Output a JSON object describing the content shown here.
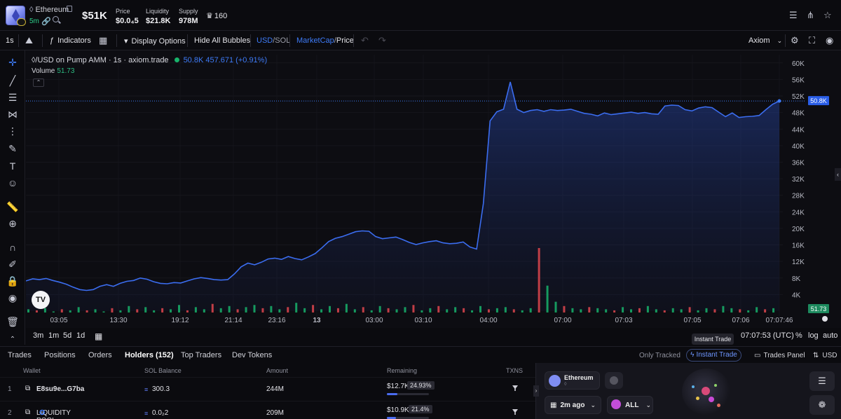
{
  "header": {
    "token_name": "Ethereum",
    "token_symbol_glyph": "◊",
    "age": "5m",
    "market_cap": "$51K",
    "stats": [
      {
        "label": "Price",
        "value": "$0.0₄5"
      },
      {
        "label": "Liquidity",
        "value": "$21.8K"
      },
      {
        "label": "Supply",
        "value": "978M"
      }
    ],
    "crown_count": "160",
    "right_icons": [
      "list-icon",
      "share-icon",
      "star-icon"
    ]
  },
  "toolbar": {
    "interval": "1s",
    "indicators": "Indicators",
    "display_options": "Display Options",
    "hide_bubbles": "Hide All Bubbles",
    "usd": "USD",
    "sol": "SOL",
    "marketcap": "MarketCap",
    "price": "Price",
    "platform": "Axiom",
    "slash": "/"
  },
  "chart": {
    "legend_title": "◊/USD on Pump AMM · 1s · axiom.trade",
    "legend_quote": "50.8K  457.671 (+0.91%)",
    "volume_label": "Volume",
    "volume_value": "51.73",
    "last_price_tag": "50.8K",
    "volume_tag": "51.73",
    "tv_logo": "TV"
  },
  "chart_data": {
    "type": "line",
    "title": "◊/USD on Pump AMM · 1s · axiom.trade",
    "ylabel": "",
    "ylim": [
      0,
      62000
    ],
    "y_ticks": [
      "4K",
      "8K",
      "12K",
      "16K",
      "20K",
      "24K",
      "28K",
      "32K",
      "36K",
      "40K",
      "44K",
      "48K",
      "52K",
      "56K",
      "60K"
    ],
    "x_ticks": [
      "03:05",
      "13:30",
      "19:12",
      "21:14",
      "23:16",
      "13",
      "03:00",
      "03:10",
      "04:00",
      "07:00",
      "07:03",
      "07:05",
      "07:06",
      "07:07:46"
    ],
    "series": [
      {
        "values": [
          7300,
          7800,
          7600,
          7900,
          7400,
          7000,
          6500,
          5800,
          5200,
          5000,
          5200,
          6000,
          6400,
          6000,
          6700,
          7200,
          7400,
          8000,
          7700,
          7100,
          6700,
          6600,
          6900,
          6800,
          7300,
          7800,
          8100,
          7900,
          7600,
          7500,
          7600,
          9000,
          10700,
          11600,
          11200,
          11800,
          12600,
          12800,
          12500,
          13200,
          12700,
          12400,
          13100,
          13900,
          15300,
          16800,
          17600,
          18000,
          18600,
          19200,
          19400,
          19300,
          18000,
          17500,
          17700,
          17900,
          17300,
          16600,
          16100,
          16500,
          16800,
          17000,
          16500,
          16300,
          16400,
          16700,
          15500,
          15000,
          26000,
          46000,
          48200,
          48800,
          55400,
          48800,
          48000,
          48500,
          48700,
          48300,
          48700,
          48500,
          48600,
          48800,
          48300,
          47800,
          47600,
          47200,
          47900,
          47500,
          47700,
          47900,
          48100,
          47800,
          48000,
          47700,
          47600,
          49600,
          49800,
          49700,
          48700,
          48400,
          49100,
          49400,
          49200,
          48100,
          47000,
          47900,
          46800,
          47000,
          47100,
          47300,
          48700,
          50000,
          50800
        ]
      }
    ],
    "volume": [
      3,
      2,
      4,
      1,
      3,
      2,
      5,
      2,
      3,
      1,
      4,
      2,
      6,
      3,
      5,
      2,
      4,
      3,
      7,
      2,
      5,
      3,
      8,
      4,
      6,
      3,
      5,
      7,
      4,
      6,
      3,
      5,
      9,
      4,
      7,
      3,
      6,
      4,
      8,
      3,
      5,
      2,
      6,
      4,
      3,
      5,
      7,
      2,
      4,
      6,
      3,
      5,
      4,
      2,
      6,
      3,
      4,
      5,
      3,
      2,
      4,
      60,
      25,
      10,
      6,
      4,
      3,
      5,
      4,
      3,
      2,
      5,
      3,
      4,
      6,
      3,
      2,
      4,
      3,
      5,
      2,
      4,
      3,
      6,
      4,
      3,
      2,
      5,
      3,
      4
    ],
    "volume_colors_note": "green/red alternating"
  },
  "timebar": {
    "ranges": [
      "3m",
      "1m",
      "5d",
      "1d"
    ],
    "clock": "07:07:53 (UTC)",
    "percent": "%",
    "log": "log",
    "auto": "auto",
    "tooltip": "Instant Trade"
  },
  "bottom_tabs": {
    "tabs": [
      "Trades",
      "Positions",
      "Orders",
      "Holders (152)",
      "Top Traders",
      "Dev Tokens"
    ],
    "only_tracked": "Only Tracked",
    "instant_trade": "Instant Trade",
    "trades_panel": "Trades Panel",
    "currency": "USD"
  },
  "holders": {
    "columns": [
      "Wallet",
      "SOL Balance",
      "Amount",
      "Remaining",
      "TXNS"
    ],
    "rows": [
      {
        "idx": "1",
        "wallet": "E8su9e...G7ba",
        "sol": "300.3",
        "amount": "244M",
        "remaining": "$12.7K",
        "pct": "24.93%",
        "fill": 0.2493
      },
      {
        "idx": "2",
        "wallet": "LIQUIDITY POOL",
        "sol": "0.0₂2",
        "amount": "209M",
        "remaining": "$10.9K",
        "pct": "21.4%",
        "fill": 0.214
      }
    ]
  },
  "right_panel": {
    "token_name": "Ethereum",
    "token_sub": "◊",
    "time_filter": "2m ago",
    "scope": "ALL"
  },
  "colors": {
    "accent_blue": "#3e7bf7",
    "green": "#18b36b",
    "red": "#e0464e",
    "line": "#3b6df0"
  }
}
